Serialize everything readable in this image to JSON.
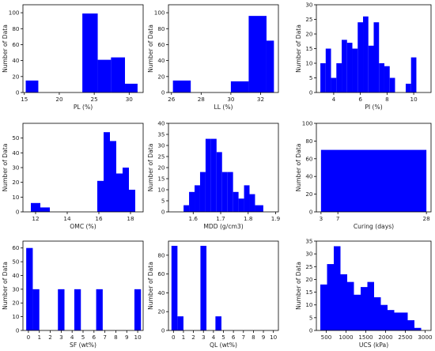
{
  "figure": {
    "bar_color": "#0000ff",
    "axis_color": "#000000"
  },
  "chart_data": [
    {
      "id": "pl",
      "type": "bar",
      "xlabel": "PL (%)",
      "ylabel": "Number of Data",
      "xlim": [
        14.8,
        32
      ],
      "ylim": [
        0,
        110
      ],
      "xticks": [
        15,
        20,
        25,
        30
      ],
      "yticks": [
        0,
        20,
        40,
        60,
        80,
        100
      ],
      "bins": [
        {
          "x0": 15.2,
          "x1": 17.0,
          "v": 15
        },
        {
          "x0": 23.3,
          "x1": 25.5,
          "v": 99
        },
        {
          "x0": 25.5,
          "x1": 27.4,
          "v": 41
        },
        {
          "x0": 27.4,
          "x1": 29.4,
          "v": 44
        },
        {
          "x0": 29.4,
          "x1": 31.2,
          "v": 11
        }
      ]
    },
    {
      "id": "ll",
      "type": "bar",
      "xlabel": "LL (%)",
      "ylabel": "Number of Data",
      "xlim": [
        25.8,
        33.2
      ],
      "ylim": [
        0,
        110
      ],
      "xticks": [
        26,
        28,
        30,
        32
      ],
      "yticks": [
        0,
        20,
        40,
        60,
        80,
        100
      ],
      "bins": [
        {
          "x0": 26.1,
          "x1": 27.3,
          "v": 15
        },
        {
          "x0": 30.0,
          "x1": 31.2,
          "v": 14
        },
        {
          "x0": 31.2,
          "x1": 32.4,
          "v": 96
        },
        {
          "x0": 32.4,
          "x1": 32.9,
          "v": 65
        }
      ]
    },
    {
      "id": "pi",
      "type": "bar",
      "xlabel": "PI (%)",
      "ylabel": "Number of Data",
      "xlim": [
        2.7,
        11.3
      ],
      "ylim": [
        0,
        30
      ],
      "xticks": [
        4,
        6,
        8,
        10
      ],
      "yticks": [
        0,
        5,
        10,
        15,
        20,
        25,
        30
      ],
      "bins": [
        {
          "x0": 3.0,
          "x1": 3.4,
          "v": 10
        },
        {
          "x0": 3.4,
          "x1": 3.8,
          "v": 15
        },
        {
          "x0": 3.8,
          "x1": 4.2,
          "v": 5
        },
        {
          "x0": 4.2,
          "x1": 4.6,
          "v": 10
        },
        {
          "x0": 4.6,
          "x1": 5.0,
          "v": 18
        },
        {
          "x0": 5.0,
          "x1": 5.4,
          "v": 17
        },
        {
          "x0": 5.4,
          "x1": 5.8,
          "v": 15
        },
        {
          "x0": 5.8,
          "x1": 6.2,
          "v": 24
        },
        {
          "x0": 6.2,
          "x1": 6.6,
          "v": 26
        },
        {
          "x0": 6.6,
          "x1": 7.0,
          "v": 16
        },
        {
          "x0": 7.0,
          "x1": 7.4,
          "v": 24
        },
        {
          "x0": 7.4,
          "x1": 7.8,
          "v": 10
        },
        {
          "x0": 7.8,
          "x1": 8.2,
          "v": 9
        },
        {
          "x0": 8.2,
          "x1": 8.6,
          "v": 5
        },
        {
          "x0": 9.4,
          "x1": 9.8,
          "v": 3
        },
        {
          "x0": 9.8,
          "x1": 10.2,
          "v": 12
        }
      ]
    },
    {
      "id": "omc",
      "type": "bar",
      "xlabel": "OMC (%)",
      "ylabel": "Number of Data",
      "xlim": [
        11.2,
        18.8
      ],
      "ylim": [
        0,
        60
      ],
      "xticks": [
        12,
        14,
        16,
        18
      ],
      "yticks": [
        0,
        10,
        20,
        30,
        40,
        50
      ],
      "bins": [
        {
          "x0": 11.7,
          "x1": 12.3,
          "v": 6
        },
        {
          "x0": 12.3,
          "x1": 12.9,
          "v": 3
        },
        {
          "x0": 15.9,
          "x1": 16.3,
          "v": 21
        },
        {
          "x0": 16.3,
          "x1": 16.7,
          "v": 54
        },
        {
          "x0": 16.7,
          "x1": 17.1,
          "v": 48
        },
        {
          "x0": 17.1,
          "x1": 17.5,
          "v": 26
        },
        {
          "x0": 17.5,
          "x1": 17.9,
          "v": 30
        },
        {
          "x0": 17.9,
          "x1": 18.3,
          "v": 15
        }
      ]
    },
    {
      "id": "mdd",
      "type": "bar",
      "xlabel": "MDD (g/cm3)",
      "ylabel": "Number of Data",
      "xlim": [
        1.51,
        1.91
      ],
      "ylim": [
        0,
        40
      ],
      "xticks": [
        1.6,
        1.7,
        1.8,
        1.9
      ],
      "yticks": [
        0,
        5,
        10,
        15,
        20,
        25,
        30,
        35,
        40
      ],
      "bins": [
        {
          "x0": 1.565,
          "x1": 1.585,
          "v": 3
        },
        {
          "x0": 1.585,
          "x1": 1.605,
          "v": 9
        },
        {
          "x0": 1.605,
          "x1": 1.625,
          "v": 12
        },
        {
          "x0": 1.625,
          "x1": 1.645,
          "v": 18
        },
        {
          "x0": 1.645,
          "x1": 1.665,
          "v": 33
        },
        {
          "x0": 1.665,
          "x1": 1.685,
          "v": 33
        },
        {
          "x0": 1.685,
          "x1": 1.705,
          "v": 27
        },
        {
          "x0": 1.705,
          "x1": 1.725,
          "v": 18
        },
        {
          "x0": 1.725,
          "x1": 1.745,
          "v": 18
        },
        {
          "x0": 1.745,
          "x1": 1.765,
          "v": 9
        },
        {
          "x0": 1.765,
          "x1": 1.785,
          "v": 6
        },
        {
          "x0": 1.785,
          "x1": 1.805,
          "v": 12
        },
        {
          "x0": 1.805,
          "x1": 1.825,
          "v": 8
        },
        {
          "x0": 1.825,
          "x1": 1.855,
          "v": 3
        }
      ]
    },
    {
      "id": "curing",
      "type": "bar",
      "xlabel": "Curing (days)",
      "ylabel": "Number of Data",
      "xlim": [
        1.9,
        29.1
      ],
      "ylim": [
        0,
        100
      ],
      "xticks": [
        3,
        7,
        28
      ],
      "yticks": [
        0,
        20,
        40,
        60,
        80,
        100
      ],
      "bins": [
        {
          "x0": 3.0,
          "x1": 28.0,
          "v": 70
        }
      ]
    },
    {
      "id": "sf",
      "type": "bar",
      "xlabel": "SF (wt%)",
      "ylabel": "Number of Data",
      "xlim": [
        -0.5,
        10.5
      ],
      "ylim": [
        0,
        65
      ],
      "xticks": [
        0,
        1,
        2,
        3,
        4,
        5,
        6,
        7,
        8,
        9,
        10
      ],
      "yticks": [
        0,
        10,
        20,
        30,
        40,
        50,
        60
      ],
      "bins": [
        {
          "x0": -0.2,
          "x1": 0.4,
          "v": 60
        },
        {
          "x0": 0.4,
          "x1": 1.0,
          "v": 30
        },
        {
          "x0": 2.7,
          "x1": 3.3,
          "v": 30
        },
        {
          "x0": 4.2,
          "x1": 4.8,
          "v": 30
        },
        {
          "x0": 6.2,
          "x1": 6.8,
          "v": 30
        },
        {
          "x0": 9.7,
          "x1": 10.3,
          "v": 30
        }
      ]
    },
    {
      "id": "ql",
      "type": "bar",
      "xlabel": "QL (wt%)",
      "ylabel": "Number of Data",
      "xlim": [
        -0.5,
        10.5
      ],
      "ylim": [
        0,
        95
      ],
      "xticks": [
        0,
        1,
        2,
        3,
        4,
        5,
        6,
        7,
        8,
        9,
        10
      ],
      "yticks": [
        0,
        20,
        40,
        60,
        80
      ],
      "bins": [
        {
          "x0": -0.2,
          "x1": 0.4,
          "v": 90
        },
        {
          "x0": 0.4,
          "x1": 1.0,
          "v": 15
        },
        {
          "x0": 2.7,
          "x1": 3.3,
          "v": 90
        },
        {
          "x0": 4.2,
          "x1": 4.8,
          "v": 15
        }
      ]
    },
    {
      "id": "ucs",
      "type": "bar",
      "xlabel": "UCS (kPa)",
      "ylabel": "Number of Data",
      "xlim": [
        250,
        3150
      ],
      "ylim": [
        0,
        35
      ],
      "xticks": [
        500,
        1000,
        1500,
        2000,
        2500,
        3000
      ],
      "yticks": [
        0,
        5,
        10,
        15,
        20,
        25,
        30,
        35
      ],
      "bins": [
        {
          "x0": 350,
          "x1": 520,
          "v": 18
        },
        {
          "x0": 520,
          "x1": 690,
          "v": 26
        },
        {
          "x0": 690,
          "x1": 860,
          "v": 33
        },
        {
          "x0": 860,
          "x1": 1030,
          "v": 22
        },
        {
          "x0": 1030,
          "x1": 1200,
          "v": 19
        },
        {
          "x0": 1200,
          "x1": 1370,
          "v": 14
        },
        {
          "x0": 1370,
          "x1": 1540,
          "v": 17
        },
        {
          "x0": 1540,
          "x1": 1710,
          "v": 19
        },
        {
          "x0": 1710,
          "x1": 1880,
          "v": 13
        },
        {
          "x0": 1880,
          "x1": 2050,
          "v": 10
        },
        {
          "x0": 2050,
          "x1": 2220,
          "v": 8
        },
        {
          "x0": 2220,
          "x1": 2390,
          "v": 7
        },
        {
          "x0": 2390,
          "x1": 2560,
          "v": 7
        },
        {
          "x0": 2560,
          "x1": 2730,
          "v": 4
        },
        {
          "x0": 2730,
          "x1": 2900,
          "v": 1
        }
      ]
    }
  ]
}
